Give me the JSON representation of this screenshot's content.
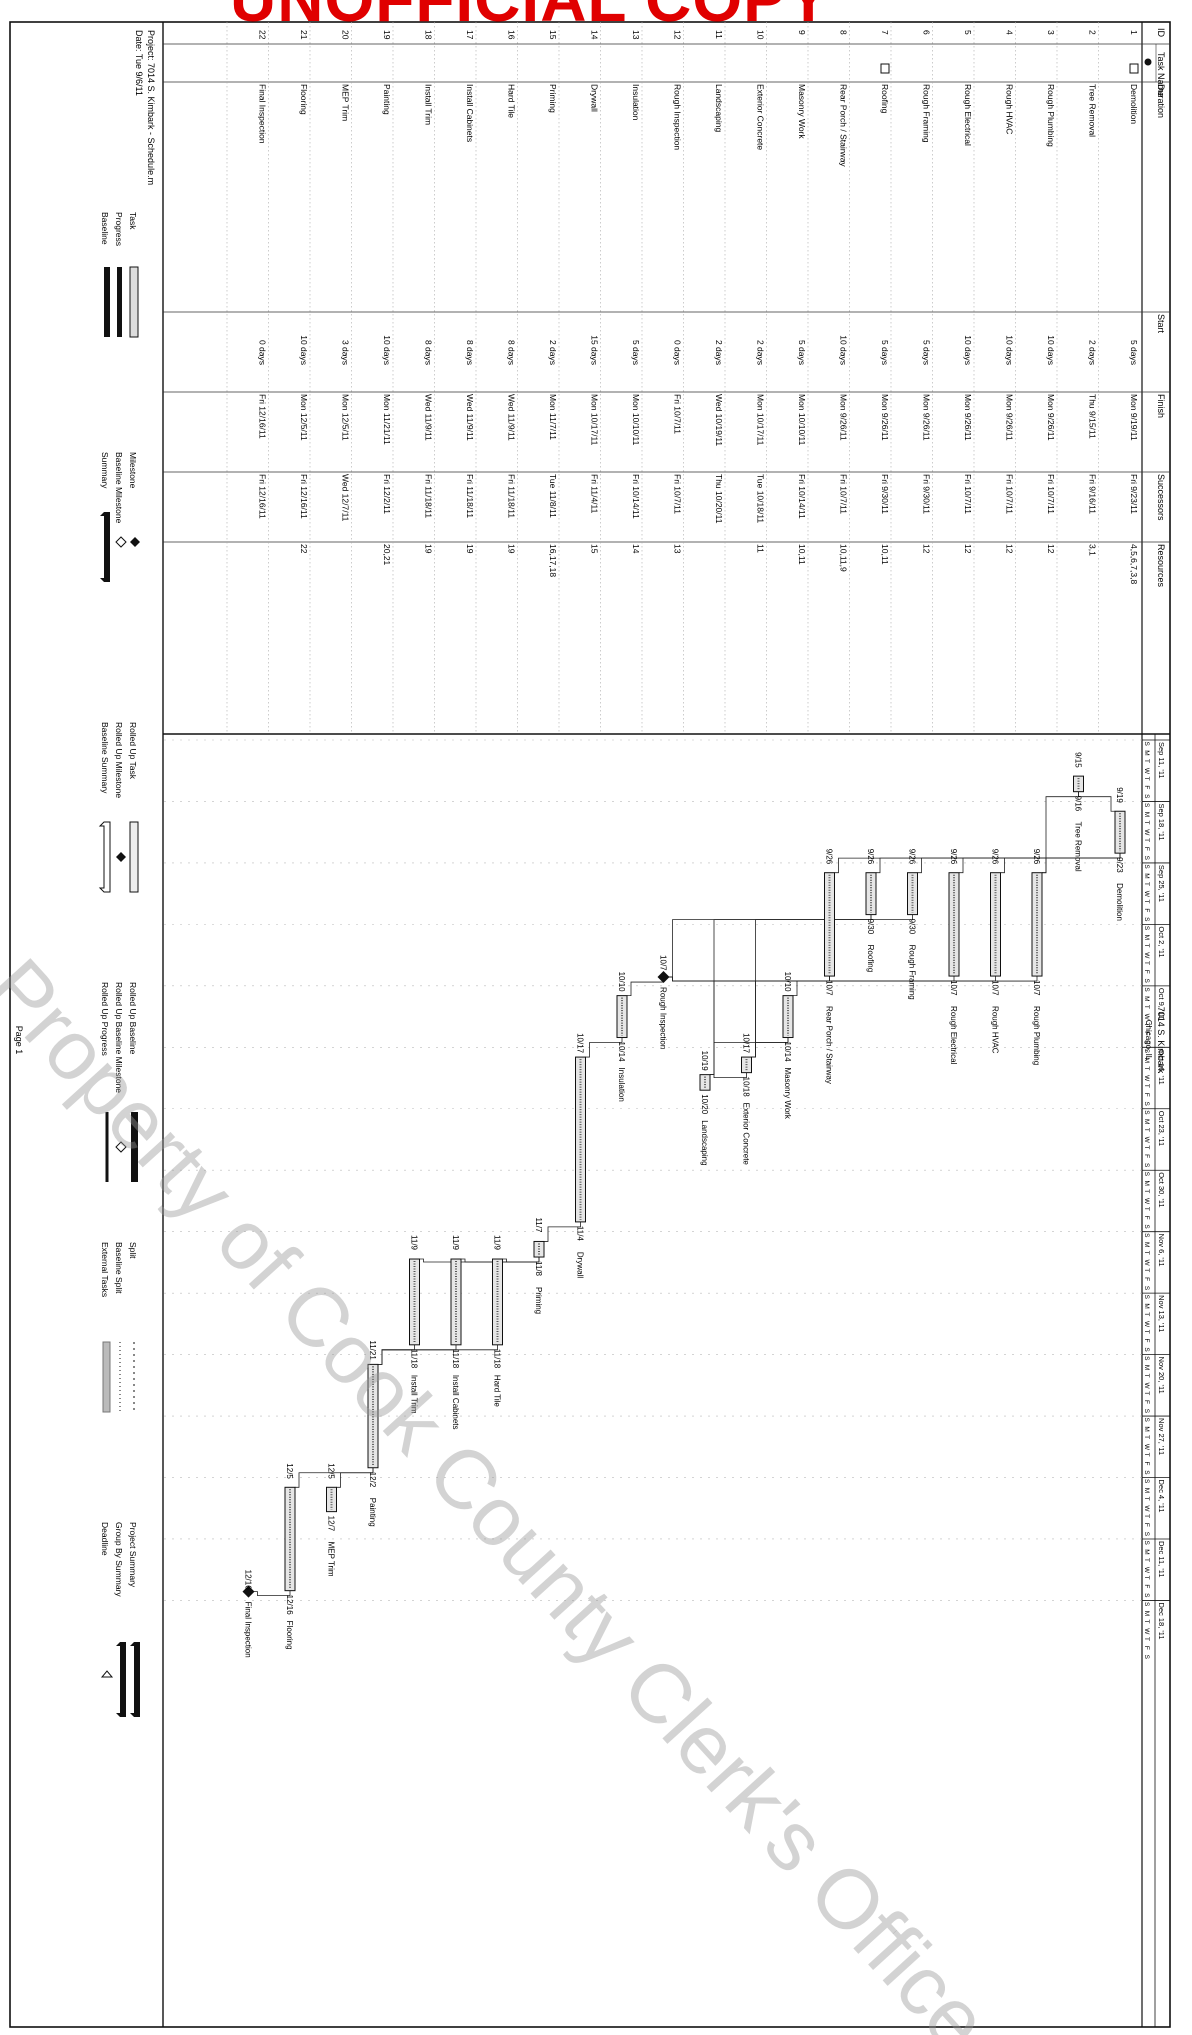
{
  "watermark": {
    "top": "UNOFFICIAL COPY",
    "diagonal": "Property of Cook County Clerk's Office"
  },
  "schedule": {
    "title": "7014 S. Kimbark",
    "subtitle": "Chicago, IL",
    "project_line": "Project: 7014 S. Kimbark - Schedule.m",
    "date_line": "Date: Tue 9/6/11",
    "page_label": "Page 1",
    "columns": [
      "ID",
      "Task Name",
      "Duration",
      "Start",
      "Finish",
      "Successors",
      "Resources"
    ],
    "tasks": [
      {
        "id": "1",
        "name": "Demolition",
        "duration": "5 days",
        "start": "Mon 9/19/11",
        "finish": "Fri 9/23/11",
        "successors": "4,5,6,7,3,8",
        "bar_start": "9/19",
        "bar_finish": "9/23"
      },
      {
        "id": "2",
        "name": "Tree Removal",
        "duration": "2 days",
        "start": "Thu 9/15/11",
        "finish": "Fri 9/16/11",
        "successors": "3,1",
        "bar_start": "9/15",
        "bar_finish": "9/16"
      },
      {
        "id": "3",
        "name": "Rough Plumbing",
        "duration": "10 days",
        "start": "Mon 9/26/11",
        "finish": "Fri 10/7/11",
        "successors": "12",
        "bar_start": "9/26",
        "bar_finish": "10/7"
      },
      {
        "id": "4",
        "name": "Rough HVAC",
        "duration": "10 days",
        "start": "Mon 9/26/11",
        "finish": "Fri 10/7/11",
        "successors": "12",
        "bar_start": "9/26",
        "bar_finish": "10/7"
      },
      {
        "id": "5",
        "name": "Rough Electrical",
        "duration": "10 days",
        "start": "Mon 9/26/11",
        "finish": "Fri 10/7/11",
        "successors": "12",
        "bar_start": "9/26",
        "bar_finish": "10/7"
      },
      {
        "id": "6",
        "name": "Rough Framing",
        "duration": "5 days",
        "start": "Mon 9/26/11",
        "finish": "Fri 9/30/11",
        "successors": "12",
        "bar_start": "9/26",
        "bar_finish": "9/30"
      },
      {
        "id": "7",
        "name": "Roofing",
        "duration": "5 days",
        "start": "Mon 9/26/11",
        "finish": "Fri 9/30/11",
        "successors": "10,11",
        "bar_start": "9/26",
        "bar_finish": "9/30"
      },
      {
        "id": "8",
        "name": "Rear Porch / Stairway",
        "duration": "10 days",
        "start": "Mon 9/26/11",
        "finish": "Fri 10/7/11",
        "successors": "10,11,9",
        "bar_start": "9/26",
        "bar_finish": "10/7"
      },
      {
        "id": "9",
        "name": "Masonry Work",
        "duration": "5 days",
        "start": "Mon 10/10/11",
        "finish": "Fri 10/14/11",
        "successors": "10,11",
        "bar_start": "10/10",
        "bar_finish": "10/14"
      },
      {
        "id": "10",
        "name": "Exterior Concrete",
        "duration": "2 days",
        "start": "Mon 10/17/11",
        "finish": "Tue 10/18/11",
        "successors": "11",
        "bar_start": "10/17",
        "bar_finish": "10/18"
      },
      {
        "id": "11",
        "name": "Landscaping",
        "duration": "2 days",
        "start": "Wed 10/19/11",
        "finish": "Thu 10/20/11",
        "successors": "",
        "bar_start": "10/19",
        "bar_finish": "10/20"
      },
      {
        "id": "12",
        "name": "Rough Inspection",
        "duration": "0 days",
        "start": "Fri 10/7/11",
        "finish": "Fri 10/7/11",
        "successors": "13",
        "bar_start": "10/7",
        "bar_finish": ""
      },
      {
        "id": "13",
        "name": "Insulation",
        "duration": "5 days",
        "start": "Mon 10/10/11",
        "finish": "Fri 10/14/11",
        "successors": "14",
        "bar_start": "10/10",
        "bar_finish": "10/14"
      },
      {
        "id": "14",
        "name": "Drywall",
        "duration": "15 days",
        "start": "Mon 10/17/11",
        "finish": "Fri 11/4/11",
        "successors": "15",
        "bar_start": "10/17",
        "bar_finish": "11/4"
      },
      {
        "id": "15",
        "name": "Priming",
        "duration": "2 days",
        "start": "Mon 11/7/11",
        "finish": "Tue 11/8/11",
        "successors": "16,17,18",
        "bar_start": "11/7",
        "bar_finish": "11/8"
      },
      {
        "id": "16",
        "name": "Hard Tile",
        "duration": "8 days",
        "start": "Wed 11/9/11",
        "finish": "Fri 11/18/11",
        "successors": "19",
        "bar_start": "11/9",
        "bar_finish": "11/18"
      },
      {
        "id": "17",
        "name": "Install Cabinets",
        "duration": "8 days",
        "start": "Wed 11/9/11",
        "finish": "Fri 11/18/11",
        "successors": "19",
        "bar_start": "11/9",
        "bar_finish": "11/18"
      },
      {
        "id": "18",
        "name": "Install Trim",
        "duration": "8 days",
        "start": "Wed 11/9/11",
        "finish": "Fri 11/18/11",
        "successors": "19",
        "bar_start": "11/9",
        "bar_finish": "11/18"
      },
      {
        "id": "19",
        "name": "Painting",
        "duration": "10 days",
        "start": "Mon 11/21/11",
        "finish": "Fri 12/2/11",
        "successors": "20,21",
        "bar_start": "11/21",
        "bar_finish": "12/2"
      },
      {
        "id": "20",
        "name": "MEP Trim",
        "duration": "3 days",
        "start": "Mon 12/5/11",
        "finish": "Wed 12/7/11",
        "successors": "",
        "bar_start": "12/5",
        "bar_finish": "12/7"
      },
      {
        "id": "21",
        "name": "Flooring",
        "duration": "10 days",
        "start": "Mon 12/5/11",
        "finish": "Fri 12/16/11",
        "successors": "22",
        "bar_start": "12/5",
        "bar_finish": "12/16"
      },
      {
        "id": "22",
        "name": "Final Inspection",
        "duration": "0 days",
        "start": "Fri 12/16/11",
        "finish": "Fri 12/16/11",
        "successors": "",
        "bar_start": "12/16",
        "bar_finish": ""
      }
    ],
    "weeks": [
      "Sep 11, '11",
      "Sep 18, '11",
      "Sep 25, '11",
      "Oct 2, '11",
      "Oct 9, '11",
      "Oct 16, '11",
      "Oct 23, '11",
      "Oct 30, '11",
      "Nov 6, '11",
      "Nov 13, '11",
      "Nov 20, '11",
      "Nov 27, '11",
      "Dec 4, '11",
      "Dec 11, '11",
      "Dec 18, '11"
    ],
    "day_letters": "SMTWTFS",
    "legend": [
      [
        "Task",
        "Milestone",
        "Rolled Up Task",
        "Rolled Up Baseline",
        "Split",
        "Project Summary"
      ],
      [
        "Progress",
        "Baseline Milestone",
        "Rolled Up Milestone",
        "Rolled Up Baseline Milestone",
        "Baseline Split",
        "Group By Summary"
      ],
      [
        "Baseline",
        "Summary",
        "Baseline Summary",
        "Rolled Up Progress",
        "External Tasks",
        "Deadline"
      ]
    ]
  }
}
